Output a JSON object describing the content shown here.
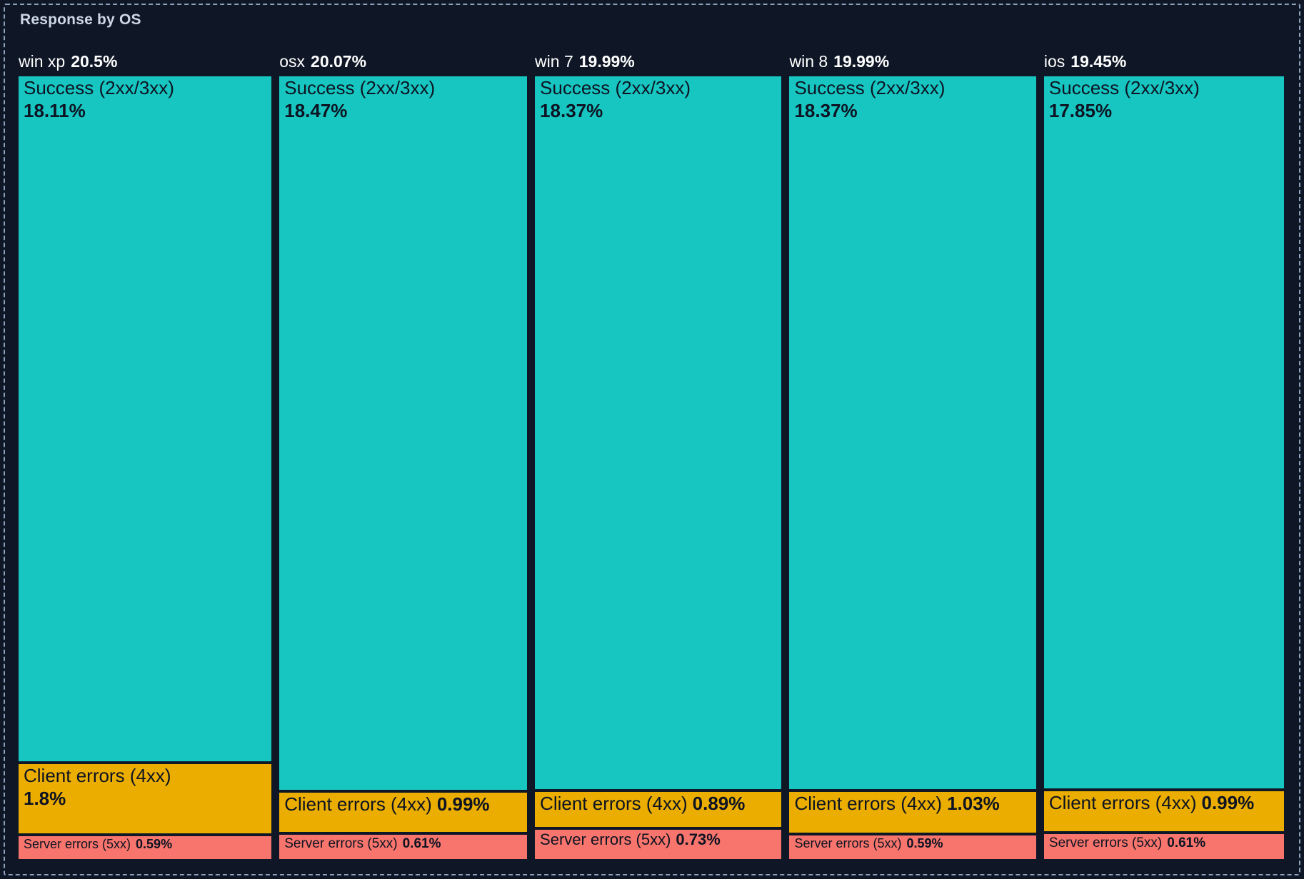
{
  "panel": {
    "title": "Response by OS"
  },
  "colors": {
    "background": "#0f1726",
    "panel_border": "#8da0bd",
    "title_text": "#ccd6e4",
    "header_text": "#ffffff",
    "segment_text": "#0d1322",
    "success": "#17c6c0",
    "client": "#ebae00",
    "server": "#f7756c"
  },
  "chart_data": {
    "type": "treemap",
    "title": "Response by OS",
    "legend_position": "none",
    "layout": "5 columns, segments stacked vertically per OS, areas proportional to percent",
    "groups": [
      {
        "name": "win xp",
        "pct": "20.5%",
        "value": 20.5,
        "children": [
          {
            "name": "Success (2xx/3xx)",
            "pct": "18.11%",
            "value": 18.11,
            "category": "success"
          },
          {
            "name": "Client errors (4xx)",
            "pct": "1.8%",
            "value": 1.8,
            "category": "client"
          },
          {
            "name": "Server errors (5xx)",
            "pct": "0.59%",
            "value": 0.59,
            "category": "server"
          }
        ]
      },
      {
        "name": "osx",
        "pct": "20.07%",
        "value": 20.07,
        "children": [
          {
            "name": "Success (2xx/3xx)",
            "pct": "18.47%",
            "value": 18.47,
            "category": "success"
          },
          {
            "name": "Client errors (4xx)",
            "pct": "0.99%",
            "value": 0.99,
            "category": "client"
          },
          {
            "name": "Server errors (5xx)",
            "pct": "0.61%",
            "value": 0.61,
            "category": "server"
          }
        ]
      },
      {
        "name": "win 7",
        "pct": "19.99%",
        "value": 19.99,
        "children": [
          {
            "name": "Success (2xx/3xx)",
            "pct": "18.37%",
            "value": 18.37,
            "category": "success"
          },
          {
            "name": "Client errors (4xx)",
            "pct": "0.89%",
            "value": 0.89,
            "category": "client"
          },
          {
            "name": "Server errors (5xx)",
            "pct": "0.73%",
            "value": 0.73,
            "category": "server"
          }
        ]
      },
      {
        "name": "win 8",
        "pct": "19.99%",
        "value": 19.99,
        "children": [
          {
            "name": "Success (2xx/3xx)",
            "pct": "18.37%",
            "value": 18.37,
            "category": "success"
          },
          {
            "name": "Client errors (4xx)",
            "pct": "1.03%",
            "value": 1.03,
            "category": "client"
          },
          {
            "name": "Server errors (5xx)",
            "pct": "0.59%",
            "value": 0.59,
            "category": "server"
          }
        ]
      },
      {
        "name": "ios",
        "pct": "19.45%",
        "value": 19.45,
        "children": [
          {
            "name": "Success (2xx/3xx)",
            "pct": "17.85%",
            "value": 17.85,
            "category": "success"
          },
          {
            "name": "Client errors (4xx)",
            "pct": "0.99%",
            "value": 0.99,
            "category": "client"
          },
          {
            "name": "Server errors (5xx)",
            "pct": "0.61%",
            "value": 0.61,
            "category": "server"
          }
        ]
      }
    ]
  }
}
